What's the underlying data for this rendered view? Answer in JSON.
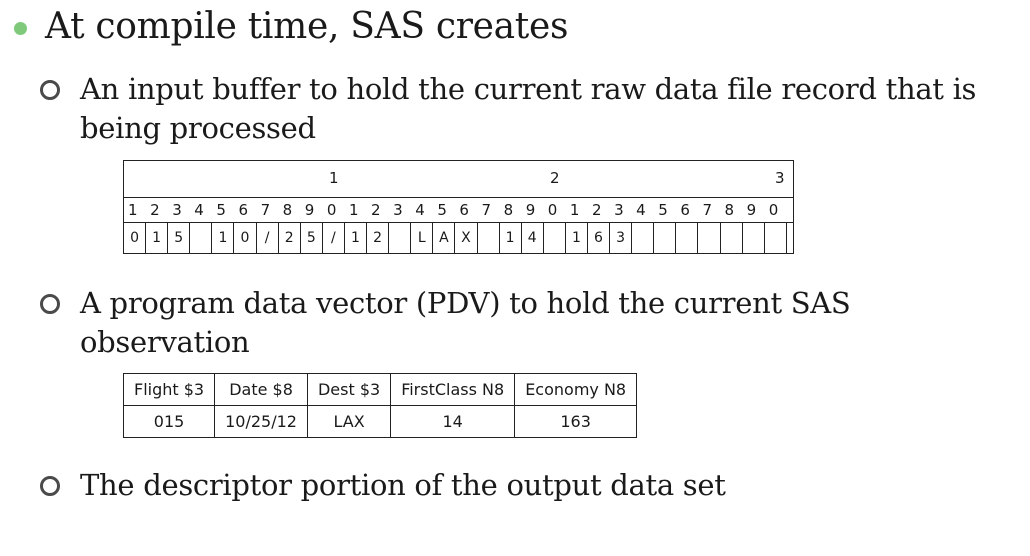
{
  "slide": {
    "heading": "At compile time, SAS creates",
    "items": [
      "An input buffer to hold the current raw data file record that is being processed",
      "A program data vector (PDV) to hold the current SAS observation",
      "The descriptor portion of the output data set"
    ]
  },
  "buffer": {
    "tens": [
      "1",
      "2",
      "3"
    ],
    "ones": [
      "1",
      "2",
      "3",
      "4",
      "5",
      "6",
      "7",
      "8",
      "9",
      "0",
      "1",
      "2",
      "3",
      "4",
      "5",
      "6",
      "7",
      "8",
      "9",
      "0",
      "1",
      "2",
      "3",
      "4",
      "5",
      "6",
      "7",
      "8",
      "9",
      "0"
    ],
    "record": [
      "0",
      "1",
      "5",
      "",
      "1",
      "0",
      "/",
      "2",
      "5",
      "/",
      "1",
      "2",
      "",
      "L",
      "A",
      "X",
      "",
      "1",
      "4",
      "",
      "1",
      "6",
      "3",
      "",
      "",
      "",
      "",
      "",
      "",
      ""
    ]
  },
  "pdv": {
    "headers": [
      "Flight $3",
      "Date $8",
      "Dest $3",
      "FirstClass  N8",
      "Economy N8"
    ],
    "values": [
      "015",
      "10/25/12",
      "LAX",
      "14",
      "163"
    ]
  },
  "colors": {
    "bullet": "#7fc97a",
    "ring": "#4a4a4a"
  }
}
